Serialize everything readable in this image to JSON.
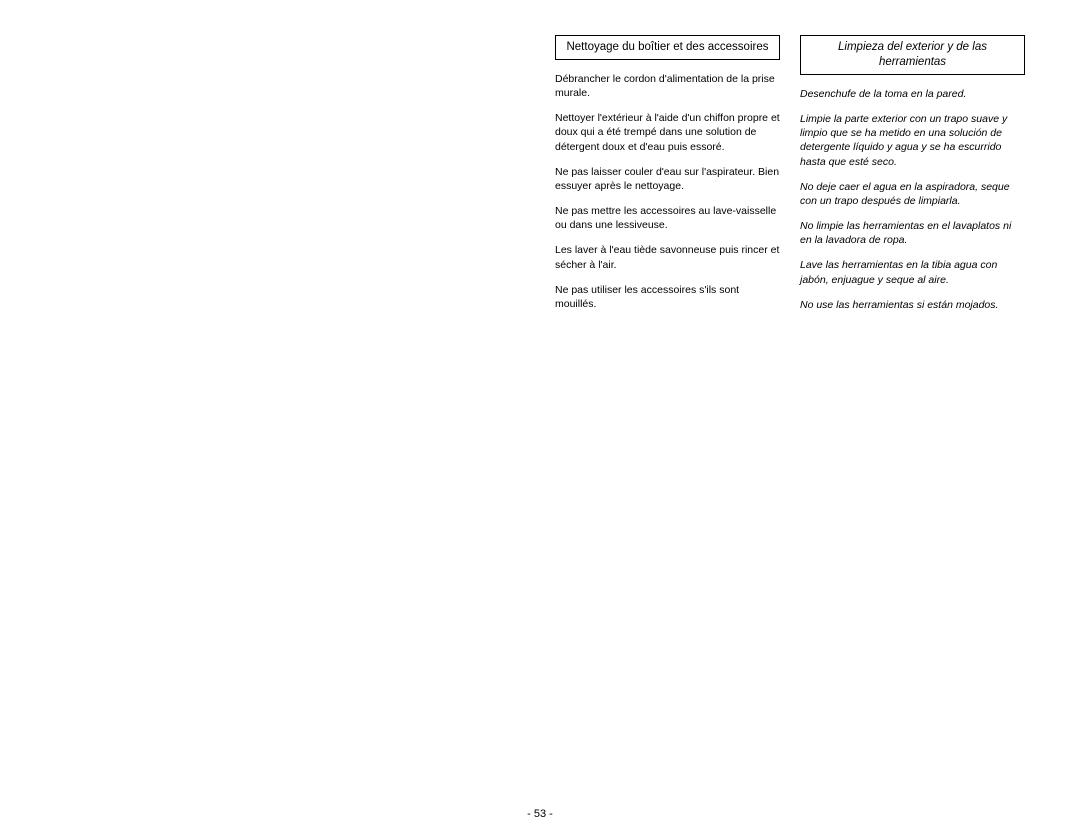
{
  "french_column": {
    "header": "Nettoyage du boîtier et des accessoires",
    "paragraphs": [
      "Débrancher le cordon d'alimentation de la prise murale.",
      "Nettoyer l'extérieur à l'aide d'un chiffon propre et doux qui a été trempé dans une solution de détergent doux et d'eau puis essoré.",
      "Ne pas laisser couler d'eau sur l'aspirateur. Bien essuyer après le nettoyage.",
      "Ne pas mettre les accessoires au lave-vaisselle ou dans une lessiveuse.",
      "Les laver à l'eau tiède savonneuse puis rincer et sécher à l'air.",
      "Ne pas utiliser les accessoires s'ils sont mouillés."
    ]
  },
  "spanish_column": {
    "header": "Limpieza del exterior y de las herramientas",
    "paragraphs": [
      "Desenchufe de la toma en la pared.",
      "Limpie la parte exterior con un trapo suave y limpio que se ha metido en una solución de detergente líquido y agua y se ha escurrido hasta que esté seco.",
      "No deje caer el agua en la aspiradora, seque con un trapo después de limpiarla.",
      "No limpie las herramientas en el lavaplatos ni en la lavadora de ropa.",
      "Lave las herramientas en la tibia agua con jabón, enjuague y seque al aire.",
      "No use las herramientas si están mojados."
    ]
  },
  "page_number": "- 53 -"
}
